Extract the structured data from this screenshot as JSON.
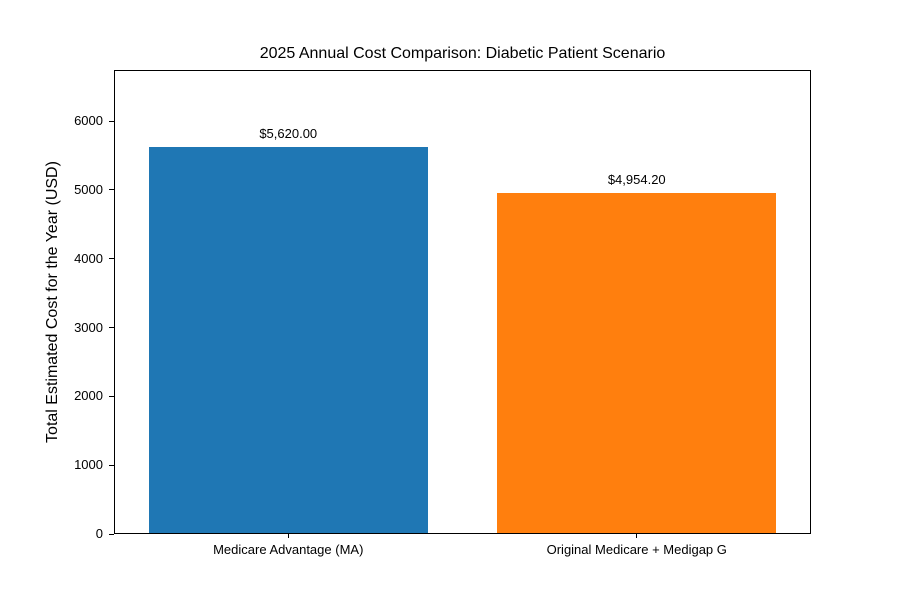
{
  "figure": {
    "background": "#ffffff",
    "text_color": "#000000"
  },
  "chart_data": {
    "type": "bar",
    "title": "2025 Annual Cost Comparison: Diabetic Patient Scenario",
    "xlabel": "",
    "ylabel": "Total Estimated Cost for the Year (USD)",
    "categories": [
      "Medicare Advantage (MA)",
      "Original Medicare + Medigap G"
    ],
    "values": [
      5620.0,
      4954.2
    ],
    "bar_value_labels": [
      "$5,620.00",
      "$4,954.20"
    ],
    "bar_colors": [
      "#1f77b4",
      "#ff7f0e"
    ],
    "yticks": [
      0,
      1000,
      2000,
      3000,
      4000,
      5000,
      6000
    ],
    "ytick_labels": [
      "0",
      "1000",
      "2000",
      "3000",
      "4000",
      "5000",
      "6000"
    ],
    "ylim": [
      0,
      6744
    ],
    "grid": false,
    "legend": "none",
    "plot_background": "#ffffff",
    "spine_color": "#000000"
  }
}
